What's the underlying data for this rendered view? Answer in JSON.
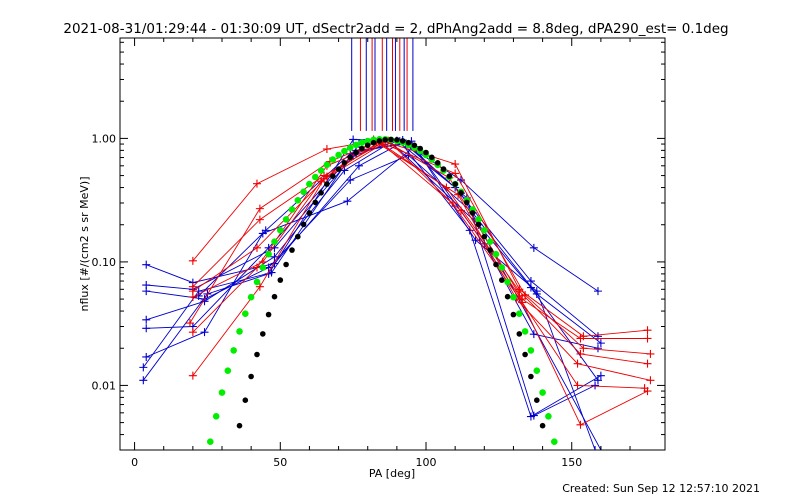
{
  "chart_data": {
    "type": "scatter",
    "title": "2021-08-31/01:29:44 - 01:30:09 UT, dSectr2add = 2, dPhAng2add = 8.8deg, dPA290_est=  0.1deg",
    "xlabel": "PA [deg]",
    "ylabel": "nflux [#/(cm2 s sr MeV)]",
    "xlim": [
      -5,
      182
    ],
    "ylim": [
      0.003,
      6.5
    ],
    "yscale": "log",
    "grid": false,
    "x_ticks": [
      0,
      50,
      100,
      150
    ],
    "x_tick_labels": [
      "0",
      "50",
      "100",
      "150"
    ],
    "y_ticks": [
      0.01,
      0.1,
      1.0
    ],
    "y_tick_labels": [
      "0.01",
      "0.10",
      "1.00"
    ],
    "colors": {
      "blue": "#0000cc",
      "red": "#ee0000",
      "green": "#00ee00",
      "black": "#000000"
    },
    "vertical_markers": {
      "y_range": [
        1.15,
        6.5
      ],
      "blue_x": [
        74.5,
        79.5,
        82.5,
        86.5,
        89.5,
        92.5,
        95.5
      ],
      "red_x": [
        77.5,
        81.5,
        85.0,
        88.5,
        91.0,
        93.5
      ]
    },
    "series": [
      {
        "color": "blue",
        "style": "line+plus",
        "lines": [
          [
            [
              4,
              0.095
            ],
            [
              20,
              0.068
            ],
            [
              48,
              0.097
            ],
            [
              77,
              0.6
            ],
            [
              92,
              0.93
            ],
            [
              112,
              0.46
            ],
            [
              137,
              0.13
            ],
            [
              159,
              0.058
            ]
          ],
          [
            [
              4,
              0.065
            ],
            [
              20,
              0.06
            ],
            [
              48,
              0.13
            ],
            [
              75,
              0.72
            ],
            [
              90,
              0.96
            ],
            [
              110,
              0.4
            ],
            [
              136,
              0.07
            ],
            [
              159,
              0.025
            ]
          ],
          [
            [
              4,
              0.058
            ],
            [
              24,
              0.05
            ],
            [
              46,
              0.09
            ],
            [
              74,
              0.46
            ],
            [
              94,
              0.73
            ],
            [
              116,
              0.25
            ],
            [
              138,
              0.055
            ],
            [
              160,
              0.022
            ]
          ],
          [
            [
              4,
              0.034
            ],
            [
              24,
              0.048
            ],
            [
              48,
              0.11
            ],
            [
              72,
              0.55
            ],
            [
              88,
              0.93
            ],
            [
              118,
              0.2
            ],
            [
              136,
              0.062
            ],
            [
              159,
              0.011
            ]
          ],
          [
            [
              4,
              0.029
            ],
            [
              20,
              0.03
            ],
            [
              46,
              0.13
            ],
            [
              76,
              0.8
            ],
            [
              93,
              0.9
            ],
            [
              114,
              0.33
            ],
            [
              137,
              0.0057
            ],
            [
              158,
              0.01
            ]
          ],
          [
            [
              4,
              0.017
            ],
            [
              24,
              0.027
            ],
            [
              44,
              0.17
            ],
            [
              73,
              0.31
            ],
            [
              96,
              0.86
            ],
            [
              120,
              0.14
            ],
            [
              137,
              0.026
            ],
            [
              159,
              0.02
            ]
          ],
          [
            [
              3,
              0.014
            ],
            [
              22,
              0.058
            ],
            [
              47,
              0.082
            ],
            [
              77,
              0.9
            ],
            [
              91,
              0.95
            ],
            [
              115,
              0.18
            ],
            [
              136,
              0.0056
            ],
            [
              160,
              0.012
            ]
          ],
          [
            [
              3,
              0.011
            ],
            [
              25,
              0.055
            ],
            [
              46,
              0.08
            ],
            [
              75,
              0.98
            ],
            [
              92,
              0.97
            ],
            [
              112,
              0.36
            ],
            [
              160,
              0.003
            ]
          ],
          [
            [
              22,
              0.053
            ],
            [
              45,
              0.18
            ],
            [
              74,
              0.75
            ],
            [
              95,
              0.95
            ],
            [
              117,
              0.15
            ],
            [
              138,
              0.058
            ],
            [
              158,
              0.003
            ]
          ]
        ]
      },
      {
        "color": "red",
        "style": "line+plus",
        "lines": [
          [
            [
              20,
              0.102
            ],
            [
              42,
              0.43
            ],
            [
              66,
              0.82
            ],
            [
              84,
              0.97
            ],
            [
              110,
              0.62
            ],
            [
              132,
              0.06
            ],
            [
              154,
              0.025
            ],
            [
              176,
              0.028
            ]
          ],
          [
            [
              20,
              0.063
            ],
            [
              43,
              0.22
            ],
            [
              65,
              0.5
            ],
            [
              86,
              0.95
            ],
            [
              108,
              0.48
            ],
            [
              133,
              0.05
            ],
            [
              153,
              0.024
            ],
            [
              176,
              0.024
            ]
          ],
          [
            [
              20,
              0.058
            ],
            [
              42,
              0.13
            ],
            [
              66,
              0.49
            ],
            [
              82,
              0.98
            ],
            [
              110,
              0.52
            ],
            [
              134,
              0.054
            ],
            [
              154,
              0.02
            ],
            [
              177,
              0.018
            ]
          ],
          [
            [
              20,
              0.052
            ],
            [
              44,
              0.1
            ],
            [
              64,
              0.45
            ],
            [
              85,
              0.9
            ],
            [
              107,
              0.4
            ],
            [
              132,
              0.058
            ],
            [
              153,
              0.018
            ],
            [
              176,
              0.015
            ]
          ],
          [
            [
              19,
              0.032
            ],
            [
              43,
              0.27
            ],
            [
              67,
              0.65
            ],
            [
              83,
              0.93
            ],
            [
              111,
              0.35
            ],
            [
              131,
              0.05
            ],
            [
              152,
              0.015
            ],
            [
              177,
              0.011
            ]
          ],
          [
            [
              20,
              0.027
            ],
            [
              42,
              0.09
            ],
            [
              66,
              0.6
            ],
            [
              87,
              0.96
            ],
            [
              109,
              0.3
            ],
            [
              133,
              0.047
            ],
            [
              152,
              0.01
            ],
            [
              175,
              0.0095
            ]
          ],
          [
            [
              20,
              0.012
            ],
            [
              43,
              0.063
            ],
            [
              65,
              0.47
            ],
            [
              84,
              0.94
            ],
            [
              112,
              0.26
            ],
            [
              132,
              0.053
            ],
            [
              153,
              0.0048
            ],
            [
              176,
              0.009
            ]
          ]
        ]
      },
      {
        "color": "green",
        "style": "dots",
        "peak_x": 85,
        "peak_y": 0.985,
        "x_range": [
          20,
          160
        ],
        "fn": "y = peak_y * sin(x)^8.5 evaluated over x_range in steps of 2 deg"
      },
      {
        "color": "black",
        "style": "dots",
        "peak_x": 88,
        "peak_y": 0.98,
        "x_range": [
          20,
          159
        ],
        "fn": "y = peak_y * sin(x)^11 evaluated over x_range in steps of 2 deg"
      }
    ]
  },
  "footer": {
    "created": "Created: Sun Sep 12 12:57:10 2021"
  }
}
